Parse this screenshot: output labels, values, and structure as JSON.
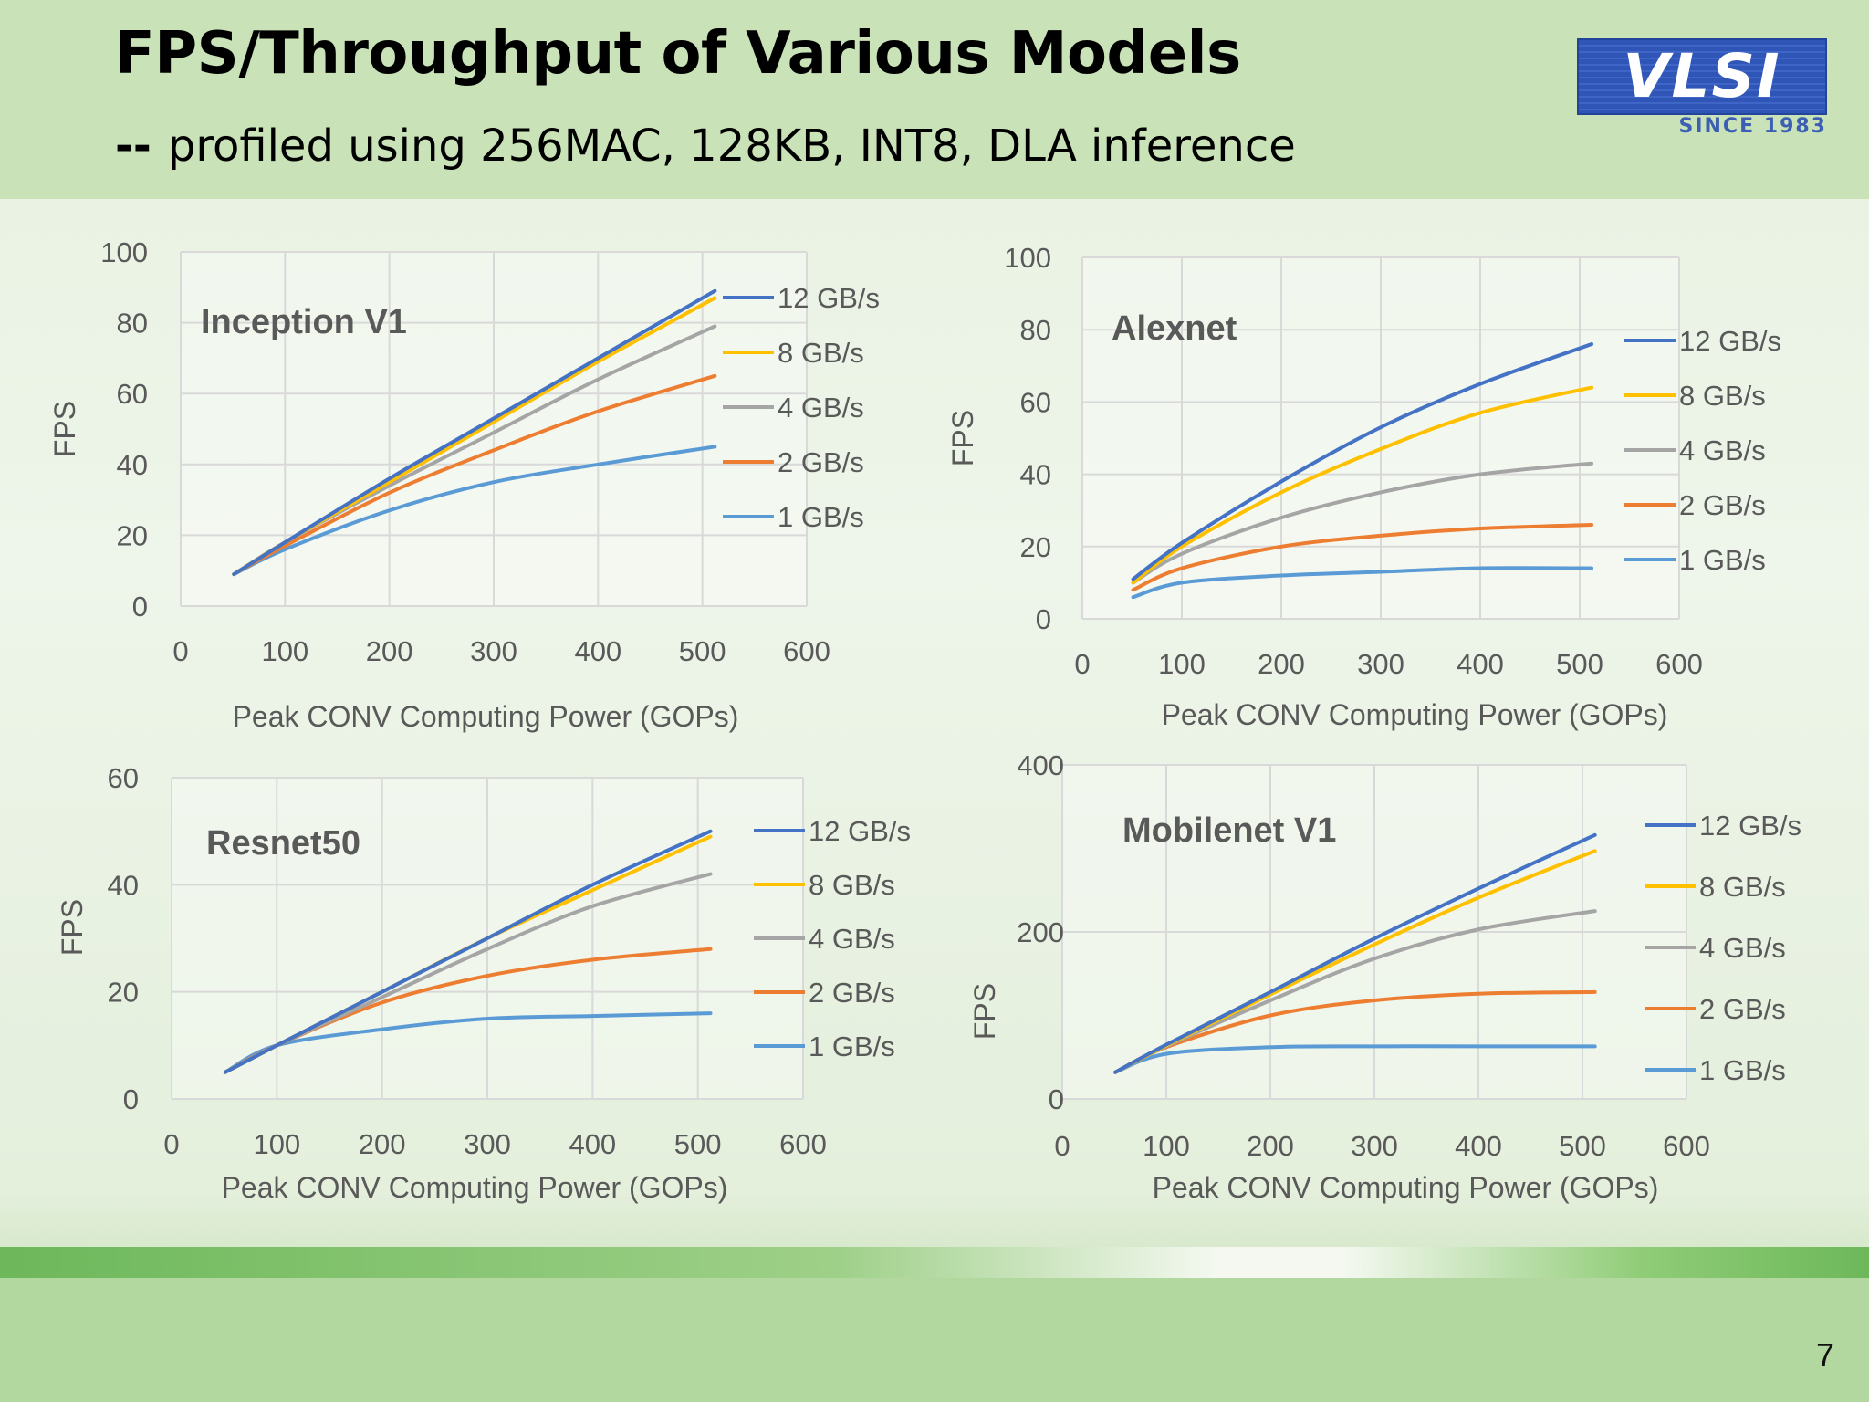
{
  "slide": {
    "title": "FPS/Throughput of Various Models",
    "subtitle_dash": "--",
    "subtitle": "profiled using  256MAC, 128KB, INT8, DLA inference",
    "logo_text": "VLSI",
    "logo_since": "SINCE 1983",
    "page_number": "7"
  },
  "colors": {
    "12 GB/s": "#4472c4",
    "8 GB/s": "#ffc000",
    "4 GB/s": "#a5a5a5",
    "2 GB/s": "#ed7d31",
    "1 GB/s": "#5b9bd5"
  },
  "chart_data": [
    {
      "type": "line",
      "title": "Inception V1",
      "xlabel": "Peak CONV Computing Power  (GOPs)",
      "ylabel": "FPS",
      "xlim": [
        0,
        600
      ],
      "ylim": [
        0,
        100
      ],
      "xticks": [
        0,
        100,
        200,
        300,
        400,
        500,
        600
      ],
      "yticks": [
        0,
        20,
        40,
        60,
        80,
        100
      ],
      "grid": true,
      "legend": "right",
      "x": [
        51,
        100,
        200,
        300,
        400,
        512
      ],
      "series": [
        {
          "name": "12 GB/s",
          "values": [
            9,
            18,
            36,
            53,
            70,
            89
          ]
        },
        {
          "name": "8 GB/s",
          "values": [
            9,
            18,
            35,
            52,
            69,
            87
          ]
        },
        {
          "name": "4 GB/s",
          "values": [
            9,
            18,
            34,
            49,
            64,
            79
          ]
        },
        {
          "name": "2 GB/s",
          "values": [
            9,
            17,
            32,
            44,
            55,
            65
          ]
        },
        {
          "name": "1 GB/s",
          "values": [
            9,
            16,
            27,
            35,
            40,
            45
          ]
        }
      ]
    },
    {
      "type": "line",
      "title": "Alexnet",
      "xlabel": "Peak CONV Computing Power  (GOPs)",
      "ylabel": "FPS",
      "xlim": [
        0,
        600
      ],
      "ylim": [
        0,
        100
      ],
      "xticks": [
        0,
        100,
        200,
        300,
        400,
        500,
        600
      ],
      "yticks": [
        0,
        20,
        40,
        60,
        80,
        100
      ],
      "grid": true,
      "legend": "right",
      "x": [
        51,
        100,
        200,
        300,
        400,
        512
      ],
      "series": [
        {
          "name": "12 GB/s",
          "values": [
            11,
            21,
            38,
            53,
            65,
            76
          ]
        },
        {
          "name": "8 GB/s",
          "values": [
            10,
            20,
            35,
            47,
            57,
            64
          ]
        },
        {
          "name": "4 GB/s",
          "values": [
            10,
            18,
            28,
            35,
            40,
            43
          ]
        },
        {
          "name": "2 GB/s",
          "values": [
            8,
            14,
            20,
            23,
            25,
            26
          ]
        },
        {
          "name": "1 GB/s",
          "values": [
            6,
            10,
            12,
            13,
            14,
            14
          ]
        }
      ]
    },
    {
      "type": "line",
      "title": "Resnet50",
      "xlabel": "Peak CONV Computing Power  (GOPs)",
      "ylabel": "FPS",
      "xlim": [
        0,
        600
      ],
      "ylim": [
        0,
        60
      ],
      "xticks": [
        0,
        100,
        200,
        300,
        400,
        500,
        600
      ],
      "yticks": [
        0,
        20,
        40,
        60
      ],
      "grid": true,
      "legend": "right",
      "x": [
        51,
        100,
        200,
        300,
        400,
        512
      ],
      "series": [
        {
          "name": "12 GB/s",
          "values": [
            5,
            10,
            20,
            30,
            40,
            50
          ]
        },
        {
          "name": "8 GB/s",
          "values": [
            5,
            10,
            20,
            30,
            39,
            49
          ]
        },
        {
          "name": "4 GB/s",
          "values": [
            5,
            10,
            19,
            28,
            36,
            42
          ]
        },
        {
          "name": "2 GB/s",
          "values": [
            5,
            10,
            18,
            23,
            26,
            28
          ]
        },
        {
          "name": "1 GB/s",
          "values": [
            5,
            10,
            13,
            15,
            15.5,
            16
          ]
        }
      ]
    },
    {
      "type": "line",
      "title": "Mobilenet V1",
      "xlabel": "Peak CONV Computing Power  (GOPs)",
      "ylabel": "FPS",
      "xlim": [
        0,
        600
      ],
      "ylim": [
        0,
        400
      ],
      "xticks": [
        0,
        100,
        200,
        300,
        400,
        500,
        600
      ],
      "yticks": [
        0,
        200,
        400
      ],
      "grid": true,
      "legend": "right",
      "x": [
        51,
        100,
        200,
        300,
        400,
        512
      ],
      "series": [
        {
          "name": "12 GB/s",
          "values": [
            32,
            65,
            128,
            192,
            252,
            316
          ]
        },
        {
          "name": "8 GB/s",
          "values": [
            32,
            64,
            125,
            185,
            241,
            297
          ]
        },
        {
          "name": "4 GB/s",
          "values": [
            32,
            63,
            118,
            168,
            203,
            225
          ]
        },
        {
          "name": "2 GB/s",
          "values": [
            32,
            62,
            100,
            118,
            126,
            128
          ]
        },
        {
          "name": "1 GB/s",
          "values": [
            32,
            54,
            62,
            63,
            63,
            63
          ]
        }
      ]
    }
  ]
}
